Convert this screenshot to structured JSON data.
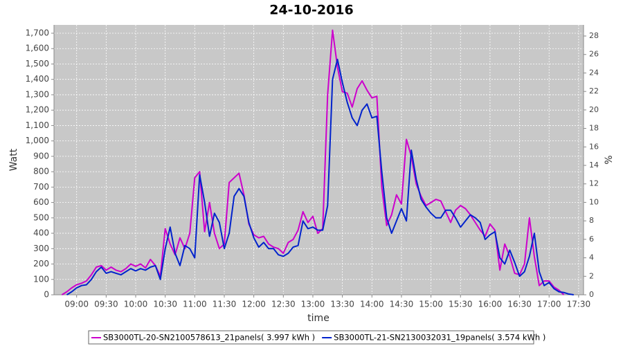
{
  "chart_data": {
    "type": "line",
    "title": "24-10-2016",
    "x_label": "time",
    "y_label": "Watt",
    "y2_label": "%",
    "x": [
      "08:45",
      "08:50",
      "08:55",
      "09:00",
      "09:05",
      "09:10",
      "09:15",
      "09:20",
      "09:25",
      "09:30",
      "09:35",
      "09:40",
      "09:45",
      "09:50",
      "09:55",
      "10:00",
      "10:05",
      "10:10",
      "10:15",
      "10:20",
      "10:25",
      "10:30",
      "10:35",
      "10:40",
      "10:45",
      "10:50",
      "10:55",
      "11:00",
      "11:05",
      "11:10",
      "11:15",
      "11:20",
      "11:25",
      "11:30",
      "11:35",
      "11:40",
      "11:45",
      "11:50",
      "11:55",
      "12:00",
      "12:05",
      "12:10",
      "12:15",
      "12:20",
      "12:25",
      "12:30",
      "12:35",
      "12:40",
      "12:45",
      "12:50",
      "12:55",
      "13:00",
      "13:05",
      "13:10",
      "13:15",
      "13:20",
      "13:25",
      "13:30",
      "13:35",
      "13:40",
      "13:45",
      "13:50",
      "13:55",
      "14:00",
      "14:05",
      "14:10",
      "14:15",
      "14:20",
      "14:25",
      "14:30",
      "14:35",
      "14:40",
      "14:45",
      "14:50",
      "14:55",
      "15:00",
      "15:05",
      "15:10",
      "15:15",
      "15:20",
      "15:25",
      "15:30",
      "15:35",
      "15:40",
      "15:45",
      "15:50",
      "15:55",
      "16:00",
      "16:05",
      "16:10",
      "16:15",
      "16:20",
      "16:25",
      "16:30",
      "16:35",
      "16:40",
      "16:45",
      "16:50",
      "16:55",
      "17:00",
      "17:05",
      "17:10",
      "17:15",
      "17:20",
      "17:25",
      "17:30"
    ],
    "series": [
      {
        "name": "SB3000TL-20-SN2100578613_21panels( 3.997 kWh )",
        "color": "#cc00cc",
        "values": [
          0,
          20,
          45,
          65,
          75,
          90,
          130,
          180,
          190,
          160,
          180,
          160,
          150,
          170,
          200,
          185,
          200,
          175,
          230,
          190,
          120,
          430,
          330,
          260,
          370,
          300,
          400,
          760,
          800,
          410,
          600,
          400,
          300,
          330,
          730,
          760,
          790,
          650,
          460,
          390,
          370,
          380,
          330,
          310,
          300,
          270,
          340,
          360,
          420,
          540,
          470,
          510,
          400,
          430,
          1300,
          1720,
          1480,
          1320,
          1310,
          1220,
          1340,
          1390,
          1330,
          1280,
          1290,
          700,
          450,
          520,
          650,
          590,
          1010,
          900,
          720,
          640,
          580,
          600,
          620,
          610,
          540,
          470,
          550,
          580,
          560,
          520,
          470,
          420,
          380,
          460,
          420,
          160,
          330,
          250,
          140,
          130,
          200,
          500,
          250,
          60,
          90,
          90,
          50,
          30,
          0,
          null,
          null,
          null
        ]
      },
      {
        "name": "SB3000TL-21-SN2130032031_19panels( 3.574 kWh )",
        "color": "#0022cc",
        "values": [
          null,
          0,
          20,
          45,
          60,
          65,
          100,
          150,
          180,
          140,
          150,
          140,
          130,
          150,
          170,
          155,
          170,
          160,
          180,
          190,
          100,
          300,
          440,
          270,
          190,
          320,
          300,
          240,
          780,
          600,
          380,
          530,
          470,
          300,
          400,
          640,
          690,
          640,
          470,
          370,
          310,
          340,
          300,
          300,
          260,
          250,
          270,
          310,
          320,
          480,
          430,
          440,
          420,
          420,
          580,
          1400,
          1530,
          1380,
          1250,
          1150,
          1100,
          1200,
          1240,
          1150,
          1160,
          800,
          500,
          400,
          480,
          560,
          480,
          940,
          750,
          620,
          570,
          530,
          500,
          500,
          550,
          550,
          500,
          440,
          480,
          520,
          500,
          470,
          360,
          390,
          410,
          240,
          200,
          290,
          210,
          120,
          150,
          250,
          400,
          150,
          60,
          80,
          40,
          20,
          15,
          5,
          0,
          null
        ]
      }
    ],
    "xlim": [
      "08:37",
      "17:35"
    ],
    "xticks": [
      "09:00",
      "09:30",
      "10:00",
      "10:30",
      "11:00",
      "11:30",
      "12:00",
      "12:30",
      "13:00",
      "13:30",
      "14:00",
      "14:30",
      "15:00",
      "15:30",
      "16:00",
      "16:30",
      "17:00",
      "17:30"
    ],
    "ylim": [
      0,
      1754
    ],
    "yticks": [
      0,
      100,
      200,
      300,
      400,
      500,
      600,
      700,
      800,
      900,
      {
        "value": 1000,
        "label": "1,000"
      },
      {
        "value": 1100,
        "label": "1,100"
      },
      {
        "value": 1200,
        "label": "1,200"
      },
      {
        "value": 1300,
        "label": "1,300"
      },
      {
        "value": 1400,
        "label": "1,400"
      },
      {
        "value": 1500,
        "label": "1,500"
      },
      {
        "value": 1600,
        "label": "1,600"
      },
      {
        "value": 1700,
        "label": "1,700"
      }
    ],
    "y2lim": [
      0,
      29.2
    ],
    "y2ticks": [
      0,
      2,
      4,
      6,
      8,
      10,
      12,
      14,
      16,
      18,
      20,
      22,
      24,
      26,
      28
    ],
    "grid": true,
    "legend": "bottom"
  }
}
